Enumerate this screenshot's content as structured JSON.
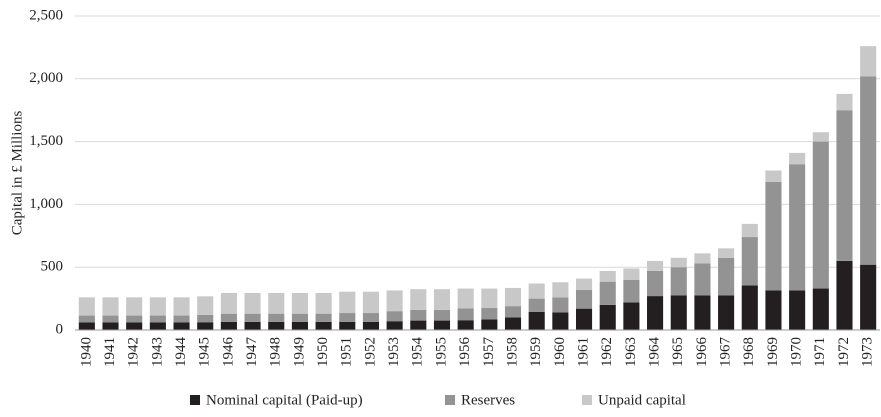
{
  "chart_data": {
    "type": "stacked_bar",
    "y_label": "Capital in £ Millions",
    "categories": [
      "1940",
      "1941",
      "1942",
      "1943",
      "1944",
      "1945",
      "1946",
      "1947",
      "1948",
      "1949",
      "1950",
      "1951",
      "1952",
      "1953",
      "1954",
      "1955",
      "1956",
      "1957",
      "1958",
      "1959",
      "1960",
      "1961",
      "1962",
      "1963",
      "1964",
      "1965",
      "1966",
      "1967",
      "1968",
      "1969",
      "1970",
      "1971",
      "1972",
      "1973"
    ],
    "series": [
      {
        "name": "Nominal capital (Paid-up)",
        "color": "#231f20",
        "values": [
          60,
          60,
          60,
          60,
          60,
          62,
          65,
          65,
          65,
          65,
          65,
          65,
          65,
          70,
          75,
          75,
          78,
          85,
          100,
          145,
          140,
          170,
          200,
          220,
          270,
          275,
          275,
          275,
          355,
          315,
          315,
          330,
          550,
          520
        ]
      },
      {
        "name": "Reserves",
        "color": "#939393",
        "values": [
          55,
          55,
          55,
          55,
          55,
          58,
          65,
          65,
          65,
          65,
          65,
          70,
          70,
          80,
          85,
          85,
          95,
          90,
          90,
          105,
          120,
          150,
          185,
          180,
          200,
          225,
          255,
          300,
          385,
          865,
          1005,
          1170,
          1200,
          1500
        ]
      },
      {
        "name": "Unpaid capital",
        "color": "#c8c8c8",
        "values": [
          145,
          145,
          145,
          145,
          145,
          148,
          165,
          165,
          165,
          165,
          165,
          170,
          170,
          165,
          165,
          165,
          157,
          155,
          145,
          120,
          120,
          90,
          85,
          90,
          80,
          75,
          80,
          75,
          105,
          90,
          90,
          75,
          130,
          240
        ]
      }
    ],
    "ylim": [
      0,
      2500
    ],
    "yticks": [
      0,
      500,
      {
        "value": 1000,
        "label": "1,000"
      },
      {
        "value": 1500,
        "label": "1,500"
      },
      {
        "value": 2000,
        "label": "2,000"
      },
      {
        "value": 2500,
        "label": "2,500"
      }
    ],
    "grid": true,
    "legend": "bottom"
  }
}
